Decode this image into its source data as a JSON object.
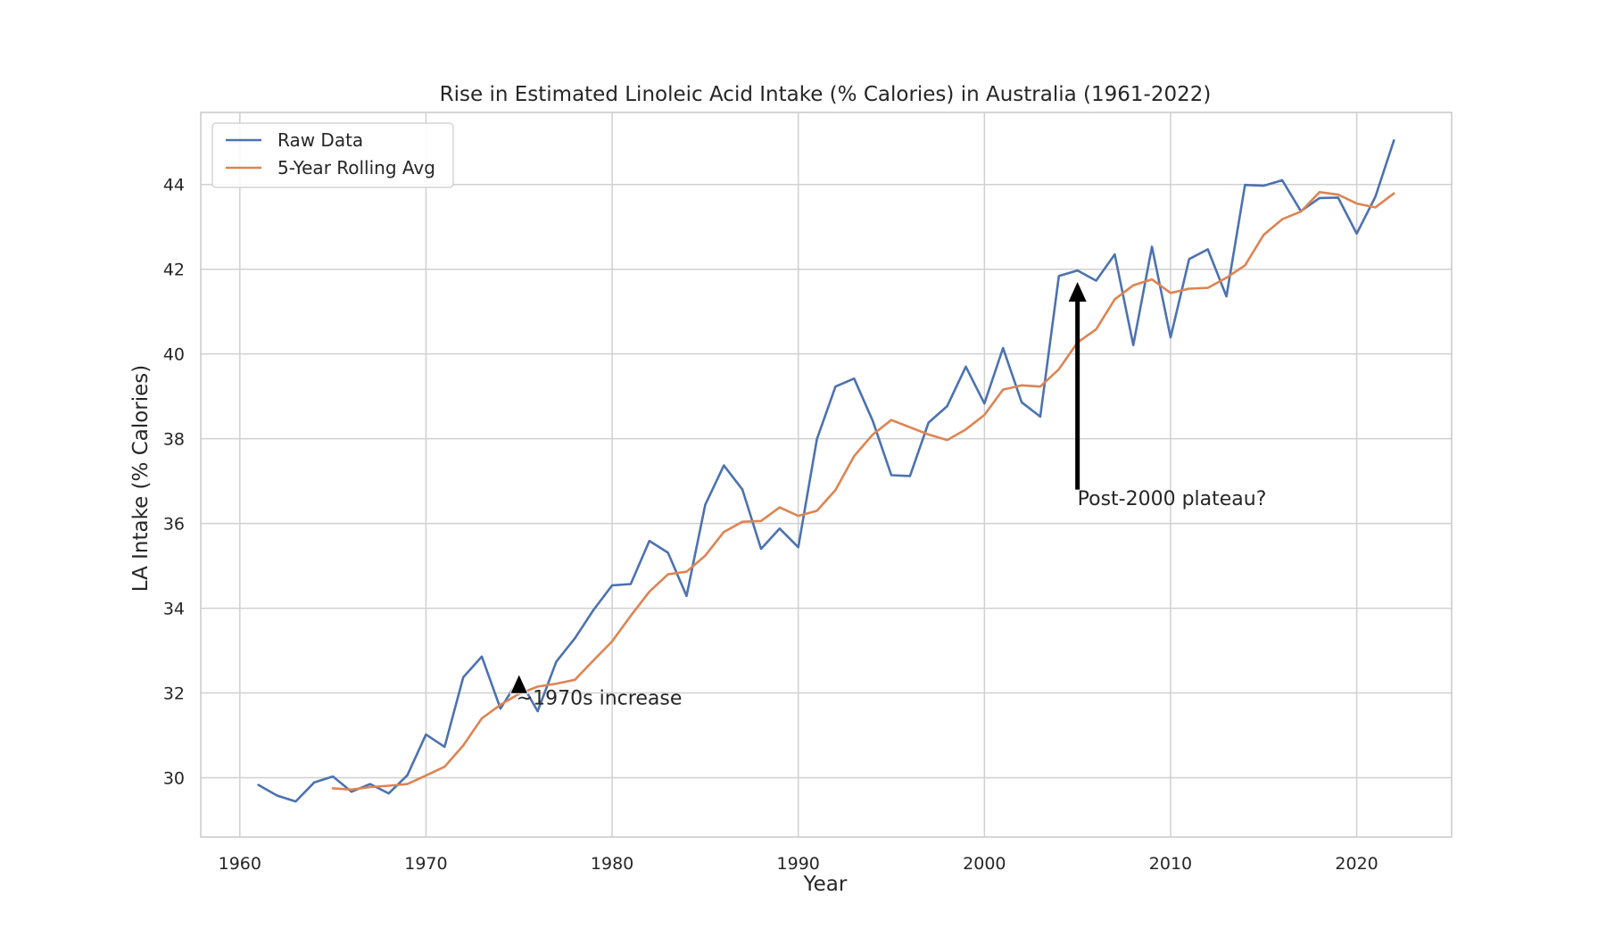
{
  "chart_data": {
    "type": "line",
    "title": "Rise in Estimated Linoleic Acid Intake (% Calories) in Australia (1961-2022)",
    "xlabel": "Year",
    "ylabel": "LA Intake (% Calories)",
    "xlim": [
      1957.9,
      2025.1
    ],
    "ylim": [
      28.6,
      45.7
    ],
    "xticks": [
      1960,
      1970,
      1980,
      1990,
      2000,
      2010,
      2020
    ],
    "yticks": [
      30,
      32,
      34,
      36,
      38,
      40,
      42,
      44
    ],
    "grid": true,
    "legend_position": "top-left",
    "colors": {
      "raw": "#4c72b0",
      "rolling": "#dd8452",
      "grid": "#d0d0d0",
      "annotation": "#000000"
    },
    "series": [
      {
        "name": "Raw Data",
        "x": [
          1961,
          1962,
          1963,
          1964,
          1965,
          1966,
          1967,
          1968,
          1969,
          1970,
          1971,
          1972,
          1973,
          1974,
          1975,
          1976,
          1977,
          1978,
          1979,
          1980,
          1981,
          1982,
          1983,
          1984,
          1985,
          1986,
          1987,
          1988,
          1989,
          1990,
          1991,
          1992,
          1993,
          1994,
          1995,
          1996,
          1997,
          1998,
          1999,
          2000,
          2001,
          2002,
          2003,
          2004,
          2005,
          2006,
          2007,
          2008,
          2009,
          2010,
          2011,
          2012,
          2013,
          2014,
          2015,
          2016,
          2017,
          2018,
          2019,
          2020,
          2021,
          2022
        ],
        "values": [
          29.83,
          29.58,
          29.44,
          29.89,
          30.03,
          29.67,
          29.85,
          29.63,
          30.06,
          31.02,
          30.73,
          32.37,
          32.86,
          31.63,
          32.33,
          31.57,
          32.74,
          33.29,
          33.96,
          34.54,
          34.57,
          35.59,
          35.31,
          34.29,
          36.44,
          37.37,
          36.8,
          35.4,
          35.88,
          35.44,
          37.99,
          39.23,
          39.42,
          38.42,
          37.14,
          37.12,
          38.38,
          38.77,
          39.7,
          38.83,
          40.14,
          38.86,
          38.52,
          41.84,
          41.97,
          41.73,
          42.35,
          40.21,
          42.53,
          40.39,
          42.24,
          42.47,
          41.36,
          43.99,
          43.97,
          44.1,
          43.37,
          43.68,
          43.69,
          42.84,
          43.71,
          45.04
        ]
      },
      {
        "name": "5-Year Rolling Avg",
        "x": [
          1965,
          1966,
          1967,
          1968,
          1969,
          1970,
          1971,
          1972,
          1973,
          1974,
          1975,
          1976,
          1977,
          1978,
          1979,
          1980,
          1981,
          1982,
          1983,
          1984,
          1985,
          1986,
          1987,
          1988,
          1989,
          1990,
          1991,
          1992,
          1993,
          1994,
          1995,
          1996,
          1997,
          1998,
          1999,
          2000,
          2001,
          2002,
          2003,
          2004,
          2005,
          2006,
          2007,
          2008,
          2009,
          2010,
          2011,
          2012,
          2013,
          2014,
          2015,
          2016,
          2017,
          2018,
          2019,
          2020,
          2021,
          2022
        ],
        "values": [
          29.75,
          29.72,
          29.78,
          29.81,
          29.85,
          30.05,
          30.26,
          30.76,
          31.4,
          31.72,
          31.98,
          32.15,
          32.22,
          32.31,
          32.77,
          33.22,
          33.82,
          34.39,
          34.8,
          34.86,
          35.24,
          35.8,
          36.04,
          36.06,
          36.38,
          36.18,
          36.3,
          36.79,
          37.59,
          38.1,
          38.44,
          38.27,
          38.1,
          37.97,
          38.22,
          38.56,
          39.16,
          39.26,
          39.23,
          39.64,
          40.27,
          40.58,
          41.29,
          41.62,
          41.76,
          41.44,
          41.54,
          41.56,
          41.8,
          42.09,
          42.81,
          43.18,
          43.36,
          43.82,
          43.76,
          43.55,
          43.46,
          43.79
        ]
      }
    ],
    "annotations": [
      {
        "text": "~1970s increase",
        "x": 1975,
        "y": 31.9,
        "arrow_from_year": 1975,
        "arrow_from_value": 31.9,
        "arrow_to_year": 1975,
        "arrow_to_value": 32.3
      },
      {
        "text": "Post-2000 plateau?",
        "x": 2005,
        "y": 36.2,
        "arrow_from_year": 2005,
        "arrow_from_value": 36.8,
        "arrow_to_year": 2005,
        "arrow_to_value": 41.7
      }
    ]
  }
}
